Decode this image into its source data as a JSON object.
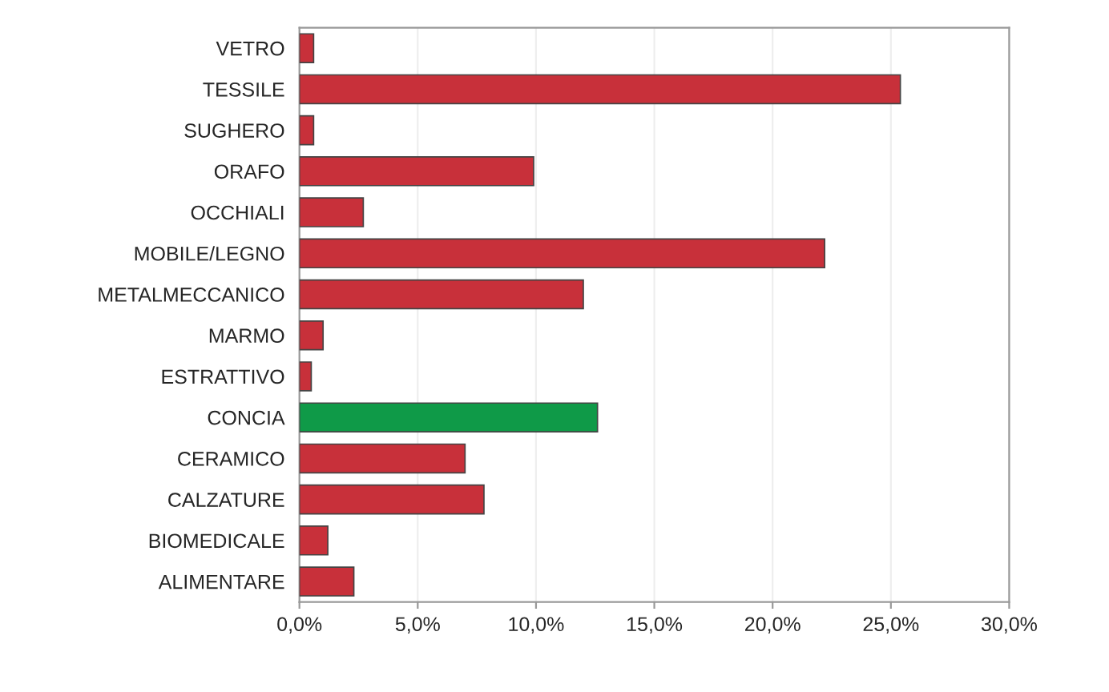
{
  "chart_data": {
    "type": "bar",
    "orientation": "horizontal",
    "categories": [
      "VETRO",
      "TESSILE",
      "SUGHERO",
      "ORAFO",
      "OCCHIALI",
      "MOBILE/LEGNO",
      "METALMECCANICO",
      "MARMO",
      "ESTRATTIVO",
      "CONCIA",
      "CERAMICO",
      "CALZATURE",
      "BIOMEDICALE",
      "ALIMENTARE"
    ],
    "values": [
      0.6,
      25.4,
      0.6,
      9.9,
      2.7,
      22.2,
      12.0,
      1.0,
      0.5,
      12.6,
      7.0,
      7.8,
      1.2,
      2.3
    ],
    "colors": [
      "#c8303a",
      "#c8303a",
      "#c8303a",
      "#c8303a",
      "#c8303a",
      "#c8303a",
      "#c8303a",
      "#c8303a",
      "#c8303a",
      "#0f9a48",
      "#c8303a",
      "#c8303a",
      "#c8303a",
      "#c8303a"
    ],
    "xlim": [
      0,
      30
    ],
    "xticks": [
      {
        "value": 0,
        "label": "0,0%"
      },
      {
        "value": 5,
        "label": "5,0%"
      },
      {
        "value": 10,
        "label": "10,0%"
      },
      {
        "value": 15,
        "label": "15,0%"
      },
      {
        "value": 20,
        "label": "20,0%"
      },
      {
        "value": 25,
        "label": "25,0%"
      },
      {
        "value": 30,
        "label": "30,0%"
      }
    ],
    "grid": "x"
  }
}
